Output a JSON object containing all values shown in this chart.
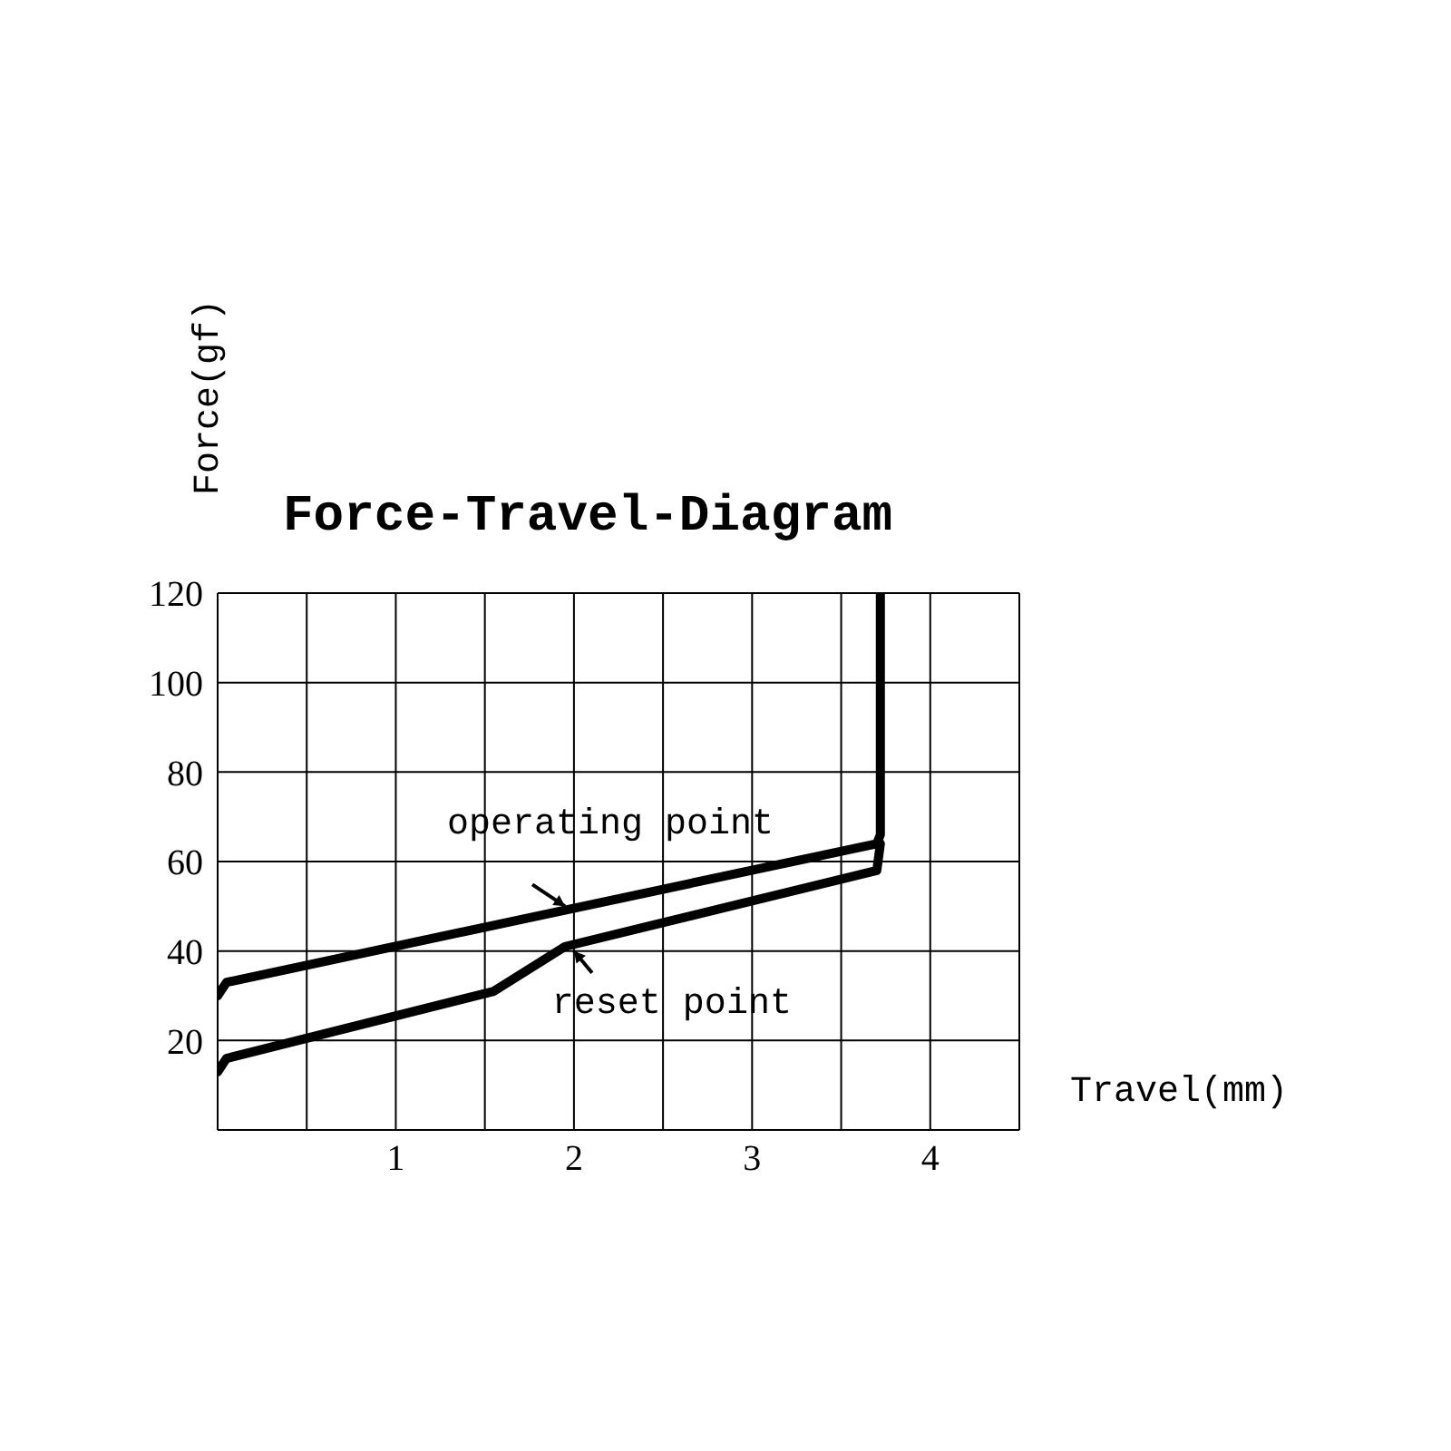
{
  "chart_data": {
    "type": "line",
    "title": "Force-Travel-Diagram",
    "xlabel": "Travel(mm)",
    "ylabel": "Force(gf)",
    "series": [
      {
        "color": "#000000",
        "x": [
          0,
          0.05,
          3.7,
          3.72,
          3.72
        ],
        "values": [
          30,
          33,
          64,
          66,
          120
        ]
      },
      {
        "color": "#000000",
        "x": [
          0,
          0.05,
          1.55,
          1.95,
          3.7,
          3.72
        ],
        "values": [
          13,
          16,
          31,
          41,
          58,
          64
        ]
      }
    ],
    "annotations": [
      {
        "text": "operating point",
        "x": 1.95,
        "y": 50
      },
      {
        "text": "reset point",
        "x": 2.0,
        "y": 40
      }
    ],
    "xlim": [
      0,
      4.5
    ],
    "ylim": [
      0,
      120
    ],
    "xticks": [
      {
        "value": 0,
        "label": null
      },
      {
        "value": 0.5,
        "label": null
      },
      1,
      {
        "value": 1.5,
        "label": null
      },
      2,
      {
        "value": 2.5,
        "label": null
      },
      3,
      {
        "value": 3.5,
        "label": null
      },
      4,
      {
        "value": 4.5,
        "label": null
      }
    ],
    "yticks": [
      {
        "value": 0,
        "label": null
      },
      20,
      40,
      60,
      80,
      100,
      120
    ],
    "grid": true,
    "legend": false,
    "marker": "none",
    "line_style": "solid"
  }
}
